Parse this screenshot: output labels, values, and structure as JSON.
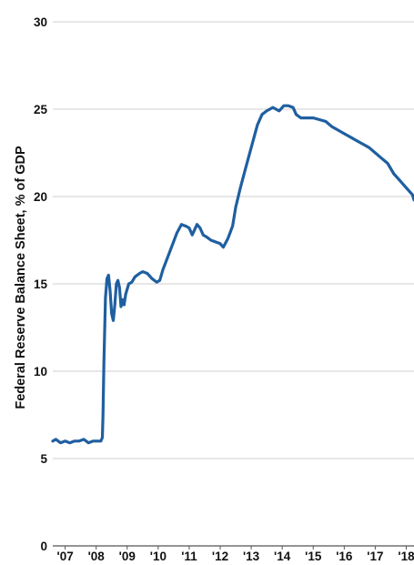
{
  "chart_data": {
    "type": "line",
    "title": "",
    "xlabel": "",
    "ylabel": "Federal Reserve Balance Sheet, % of GDP",
    "ylim": [
      0,
      30
    ],
    "yticks": [
      "0",
      "5",
      "10",
      "15",
      "20",
      "25",
      "30"
    ],
    "xlim": [
      2007.1,
      2018.75
    ],
    "xticks": [
      {
        "x": 2007.5,
        "label": "'07"
      },
      {
        "x": 2008.5,
        "label": "'08"
      },
      {
        "x": 2009.5,
        "label": "'09"
      },
      {
        "x": 2010.5,
        "label": "'10"
      },
      {
        "x": 2011.5,
        "label": "'11"
      },
      {
        "x": 2012.5,
        "label": "'12"
      },
      {
        "x": 2013.5,
        "label": "'13"
      },
      {
        "x": 2014.5,
        "label": "'14"
      },
      {
        "x": 2015.5,
        "label": "'15"
      },
      {
        "x": 2016.5,
        "label": "'16"
      },
      {
        "x": 2017.5,
        "label": "'17"
      },
      {
        "x": 2018.5,
        "label": "'18"
      }
    ],
    "grid": "horizontal",
    "line_color": "#1f5fa0",
    "series": [
      {
        "x": [
          2007.1,
          2007.2,
          2007.35,
          2007.5,
          2007.65,
          2007.8,
          2007.95,
          2008.1,
          2008.25,
          2008.4,
          2008.55,
          2008.65,
          2008.7,
          2008.72,
          2008.75,
          2008.8,
          2008.85,
          2008.9,
          2008.95,
          2009.0,
          2009.05,
          2009.1,
          2009.15,
          2009.2,
          2009.25,
          2009.3,
          2009.35,
          2009.4,
          2009.45,
          2009.55,
          2009.65,
          2009.75,
          2009.9,
          2010.0,
          2010.15,
          2010.3,
          2010.45,
          2010.55,
          2010.65,
          2010.8,
          2010.95,
          2011.1,
          2011.25,
          2011.4,
          2011.5,
          2011.6,
          2011.75,
          2011.85,
          2011.95,
          2012.05,
          2012.2,
          2012.35,
          2012.5,
          2012.6,
          2012.75,
          2012.9,
          2013.0,
          2013.15,
          2013.3,
          2013.5,
          2013.7,
          2013.85,
          2014.0,
          2014.2,
          2014.4,
          2014.55,
          2014.7,
          2014.85,
          2014.95,
          2015.1,
          2015.3,
          2015.5,
          2015.7,
          2015.9,
          2016.1,
          2016.3,
          2016.5,
          2016.7,
          2016.9,
          2017.1,
          2017.3,
          2017.5,
          2017.7,
          2017.9,
          2018.1,
          2018.3,
          2018.5,
          2018.7,
          2018.75
        ],
        "y": [
          6.0,
          6.1,
          5.9,
          6.0,
          5.9,
          6.0,
          6.0,
          6.1,
          5.9,
          6.0,
          6.0,
          6.0,
          6.2,
          7.5,
          10.5,
          14.2,
          15.3,
          15.5,
          14.6,
          13.3,
          12.9,
          13.8,
          15.0,
          15.2,
          14.8,
          13.7,
          14.1,
          13.8,
          14.4,
          15.0,
          15.1,
          15.4,
          15.6,
          15.7,
          15.6,
          15.3,
          15.1,
          15.2,
          15.8,
          16.5,
          17.2,
          17.9,
          18.4,
          18.3,
          18.2,
          17.8,
          18.4,
          18.2,
          17.8,
          17.7,
          17.5,
          17.4,
          17.3,
          17.1,
          17.6,
          18.3,
          19.4,
          20.5,
          21.5,
          22.8,
          24.1,
          24.7,
          24.9,
          25.1,
          24.9,
          25.2,
          25.2,
          25.1,
          24.7,
          24.5,
          24.5,
          24.5,
          24.4,
          24.3,
          24.0,
          23.8,
          23.6,
          23.4,
          23.2,
          23.0,
          22.8,
          22.5,
          22.2,
          21.9,
          21.3,
          20.9,
          20.5,
          20.1,
          19.8
        ]
      }
    ]
  }
}
